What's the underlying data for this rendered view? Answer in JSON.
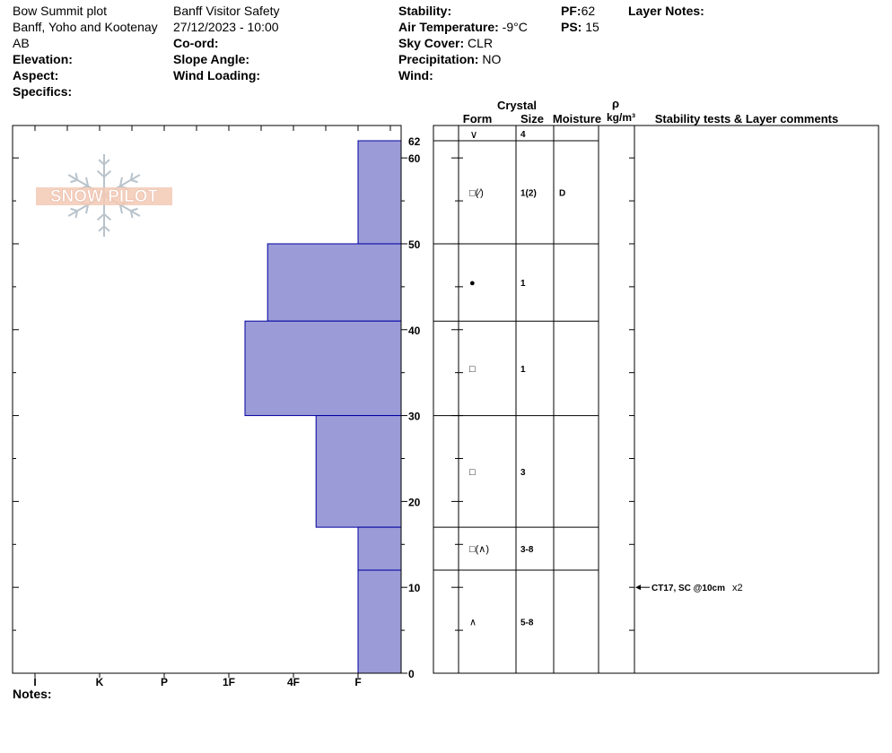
{
  "header": {
    "col1": {
      "site": "Bow Summit plot",
      "range": "Banff, Yoho and Kootenay",
      "province": "AB",
      "elevation_label": "Elevation:",
      "aspect_label": "Aspect:",
      "specifics_label": "Specifics:"
    },
    "col2": {
      "observer": "Banff  Visitor Safety",
      "datetime": "27/12/2023 - 10:00",
      "coord_label": "Co-ord:",
      "slope_label": "Slope Angle:",
      "wind_loading_label": "Wind Loading:"
    },
    "col3": {
      "stability_label": "Stability:",
      "air_temp_label": "Air Temperature:",
      "air_temp_value": "-9°C",
      "sky_label": "Sky Cover:",
      "sky_value": "CLR",
      "precip_label": "Precipitation:",
      "precip_value": "NO",
      "wind_label": "Wind:"
    },
    "col4": {
      "pf_label": "PF:",
      "pf_value": "62",
      "ps_label": "PS:",
      "ps_value": "15"
    },
    "layer_notes_label": "Layer Notes:"
  },
  "table_headers": {
    "crystal": "Crystal",
    "form": "Form",
    "size": "Size",
    "moisture": "Moisture",
    "rho": "ρ",
    "density_unit": "kg/m³",
    "comments": "Stability tests & Layer comments"
  },
  "notes_label": "Notes:",
  "logo_text": "SNOW PILOT",
  "colors": {
    "profile_fill": "#9b9bd8",
    "profile_stroke": "#0000a0",
    "logo_fill": "#f3c9b5",
    "logo_flake": "#b9c3cb"
  },
  "chart_data": {
    "type": "bar",
    "title": "",
    "orientation": "horizontal",
    "ylabel": "",
    "xlabel": "",
    "ylim": [
      0,
      62
    ],
    "y_ticks": [
      0,
      10,
      20,
      30,
      40,
      50,
      60,
      62
    ],
    "y_tick_labels": [
      "0",
      "10",
      "20",
      "30",
      "40",
      "50",
      "60",
      "62"
    ],
    "hardness_scale": [
      "I",
      "K",
      "P",
      "1F",
      "4F",
      "F"
    ],
    "hardness_index": {
      "I": 6,
      "K": 5,
      "P": 4,
      "1F": 3,
      "4F": 2,
      "F": 1
    },
    "layers": [
      {
        "top": 62,
        "bottom": 50,
        "hardness": 1,
        "form": "□(⁄)",
        "size": "1(2)",
        "moisture": "D"
      },
      {
        "top": 50,
        "bottom": 41,
        "hardness": 2.4,
        "form": "●",
        "size": "1",
        "moisture": ""
      },
      {
        "top": 41,
        "bottom": 30,
        "hardness": 2.75,
        "form": "□",
        "size": "1",
        "moisture": ""
      },
      {
        "top": 30,
        "bottom": 17,
        "hardness": 1.65,
        "form": "□",
        "size": "3",
        "moisture": ""
      },
      {
        "top": 17,
        "bottom": 12,
        "hardness": 1,
        "form": "□(∧)",
        "size": "3-8",
        "moisture": ""
      },
      {
        "top": 12,
        "bottom": 0,
        "hardness": 1,
        "form": "∧",
        "size": "5-8",
        "moisture": ""
      }
    ],
    "surface_layer": {
      "form": "∨",
      "size": "4"
    },
    "stability_tests": [
      {
        "depth": 10,
        "text": "CT17, SC @10cm",
        "multiplier": "x2"
      }
    ]
  }
}
